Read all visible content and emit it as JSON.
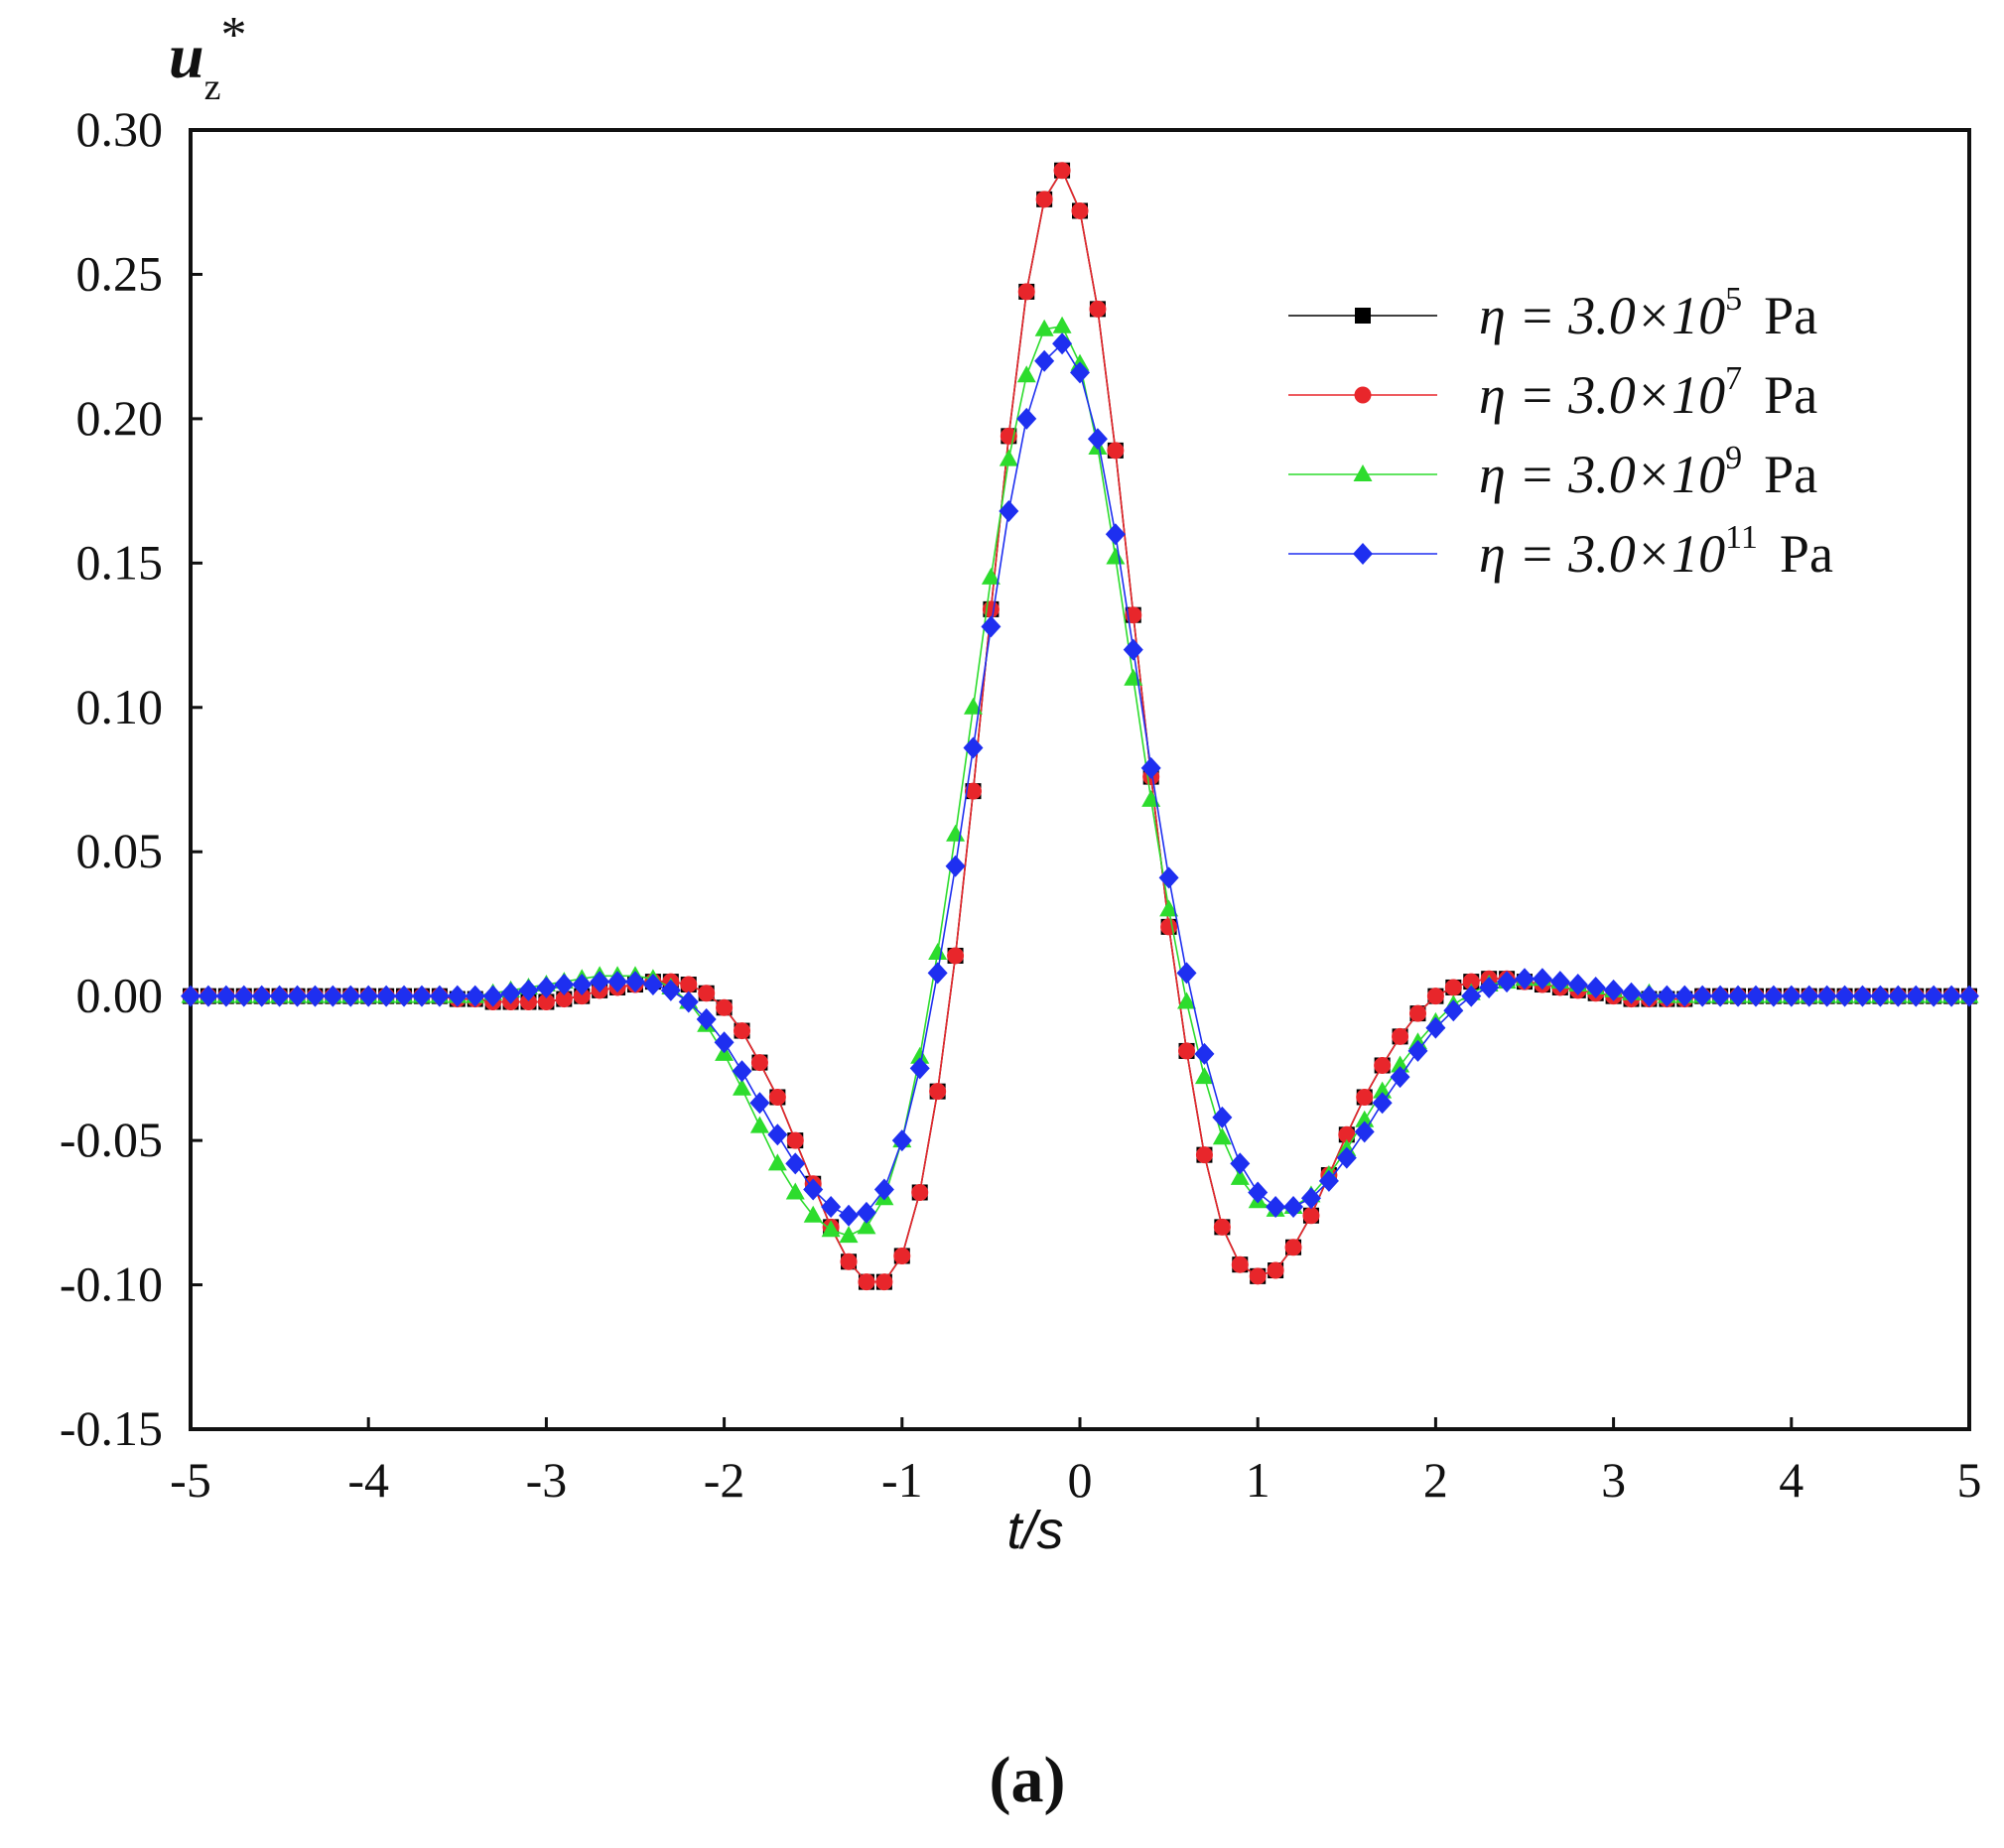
{
  "chart_data": {
    "type": "line",
    "title": "",
    "ylabel_main": "u",
    "ylabel_sub": "z",
    "ylabel_sup": "*",
    "xlabel": "t/s",
    "caption": "(a)",
    "xlim": [
      -5,
      5
    ],
    "ylim": [
      -0.15,
      0.3
    ],
    "x_ticks": [
      -5,
      -4,
      -3,
      -2,
      -1,
      0,
      1,
      2,
      3,
      4,
      5
    ],
    "x_tick_labels": [
      "-5",
      "-4",
      "-3",
      "-2",
      "-1",
      "0",
      "1",
      "2",
      "3",
      "4",
      "5"
    ],
    "y_ticks": [
      -0.15,
      -0.1,
      -0.05,
      0.0,
      0.05,
      0.1,
      0.15,
      0.2,
      0.25,
      0.3
    ],
    "y_tick_labels": [
      "-0.15",
      "-0.10",
      "-0.05",
      "0.00",
      "0.05",
      "0.10",
      "0.15",
      "0.20",
      "0.25",
      "0.30"
    ],
    "grid": false,
    "legend_position": "top-right",
    "legend_prefix": "η = 3.0×10",
    "legend_unit": "Pa",
    "series": [
      {
        "name": "η = 3.0×10^5 Pa",
        "exponent": "5",
        "color": "#000000",
        "marker": "square",
        "x": [
          -5.0,
          -4.9,
          -4.8,
          -4.7,
          -4.6,
          -4.5,
          -4.4,
          -4.3,
          -4.2,
          -4.1,
          -4.0,
          -3.9,
          -3.8,
          -3.7,
          -3.6,
          -3.5,
          -3.4,
          -3.3,
          -3.2,
          -3.1,
          -3.0,
          -2.9,
          -2.8,
          -2.7,
          -2.6,
          -2.5,
          -2.4,
          -2.3,
          -2.2,
          -2.1,
          -2.0,
          -1.9,
          -1.8,
          -1.7,
          -1.6,
          -1.5,
          -1.4,
          -1.3,
          -1.2,
          -1.1,
          -1.0,
          -0.9,
          -0.8,
          -0.7,
          -0.6,
          -0.5,
          -0.4,
          -0.3,
          -0.2,
          -0.1,
          0.0,
          0.1,
          0.2,
          0.3,
          0.4,
          0.5,
          0.6,
          0.7,
          0.8,
          0.9,
          1.0,
          1.1,
          1.2,
          1.3,
          1.4,
          1.5,
          1.6,
          1.7,
          1.8,
          1.9,
          2.0,
          2.1,
          2.2,
          2.3,
          2.4,
          2.5,
          2.6,
          2.7,
          2.8,
          2.9,
          3.0,
          3.1,
          3.2,
          3.3,
          3.4,
          3.5,
          3.6,
          3.7,
          3.8,
          3.9,
          4.0,
          4.1,
          4.2,
          4.3,
          4.4,
          4.5,
          4.6,
          4.7,
          4.8,
          4.9,
          5.0
        ],
        "y": [
          0.0,
          0.0,
          0.0,
          0.0,
          0.0,
          0.0,
          0.0,
          0.0,
          0.0,
          0.0,
          0.0,
          0.0,
          0.0,
          0.0,
          0.0,
          -0.001,
          -0.001,
          -0.002,
          -0.002,
          -0.002,
          -0.002,
          -0.001,
          0.0,
          0.002,
          0.003,
          0.004,
          0.005,
          0.005,
          0.004,
          0.001,
          -0.004,
          -0.012,
          -0.023,
          -0.035,
          -0.05,
          -0.065,
          -0.08,
          -0.092,
          -0.099,
          -0.099,
          -0.09,
          -0.068,
          -0.033,
          0.014,
          0.071,
          0.134,
          0.194,
          0.244,
          0.276,
          0.286,
          0.272,
          0.238,
          0.189,
          0.132,
          0.076,
          0.024,
          -0.019,
          -0.055,
          -0.08,
          -0.093,
          -0.097,
          -0.095,
          -0.087,
          -0.076,
          -0.062,
          -0.048,
          -0.035,
          -0.024,
          -0.014,
          -0.006,
          0.0,
          0.003,
          0.005,
          0.006,
          0.006,
          0.005,
          0.004,
          0.003,
          0.002,
          0.001,
          0.0,
          -0.001,
          -0.001,
          -0.001,
          -0.001,
          0.0,
          0.0,
          0.0,
          0.0,
          0.0,
          0.0,
          0.0,
          0.0,
          0.0,
          0.0,
          0.0,
          0.0,
          0.0,
          0.0,
          0.0,
          0.0
        ]
      },
      {
        "name": "η = 3.0×10^7 Pa",
        "exponent": "7",
        "color": "#e8262b",
        "marker": "circle",
        "x": [
          -5.0,
          -4.9,
          -4.8,
          -4.7,
          -4.6,
          -4.5,
          -4.4,
          -4.3,
          -4.2,
          -4.1,
          -4.0,
          -3.9,
          -3.8,
          -3.7,
          -3.6,
          -3.5,
          -3.4,
          -3.3,
          -3.2,
          -3.1,
          -3.0,
          -2.9,
          -2.8,
          -2.7,
          -2.6,
          -2.5,
          -2.4,
          -2.3,
          -2.2,
          -2.1,
          -2.0,
          -1.9,
          -1.8,
          -1.7,
          -1.6,
          -1.5,
          -1.4,
          -1.3,
          -1.2,
          -1.1,
          -1.0,
          -0.9,
          -0.8,
          -0.7,
          -0.6,
          -0.5,
          -0.4,
          -0.3,
          -0.2,
          -0.1,
          0.0,
          0.1,
          0.2,
          0.3,
          0.4,
          0.5,
          0.6,
          0.7,
          0.8,
          0.9,
          1.0,
          1.1,
          1.2,
          1.3,
          1.4,
          1.5,
          1.6,
          1.7,
          1.8,
          1.9,
          2.0,
          2.1,
          2.2,
          2.3,
          2.4,
          2.5,
          2.6,
          2.7,
          2.8,
          2.9,
          3.0,
          3.1,
          3.2,
          3.3,
          3.4,
          3.5,
          3.6,
          3.7,
          3.8,
          3.9,
          4.0,
          4.1,
          4.2,
          4.3,
          4.4,
          4.5,
          4.6,
          4.7,
          4.8,
          4.9,
          5.0
        ],
        "y": [
          0.0,
          0.0,
          0.0,
          0.0,
          0.0,
          0.0,
          0.0,
          0.0,
          0.0,
          0.0,
          0.0,
          0.0,
          0.0,
          0.0,
          0.0,
          -0.001,
          -0.001,
          -0.002,
          -0.002,
          -0.002,
          -0.002,
          -0.001,
          0.0,
          0.002,
          0.003,
          0.004,
          0.005,
          0.005,
          0.004,
          0.001,
          -0.004,
          -0.012,
          -0.023,
          -0.035,
          -0.05,
          -0.065,
          -0.08,
          -0.092,
          -0.099,
          -0.099,
          -0.09,
          -0.068,
          -0.033,
          0.014,
          0.071,
          0.134,
          0.194,
          0.244,
          0.276,
          0.286,
          0.272,
          0.238,
          0.189,
          0.132,
          0.076,
          0.024,
          -0.019,
          -0.055,
          -0.08,
          -0.093,
          -0.097,
          -0.095,
          -0.087,
          -0.076,
          -0.062,
          -0.048,
          -0.035,
          -0.024,
          -0.014,
          -0.006,
          0.0,
          0.003,
          0.005,
          0.006,
          0.006,
          0.005,
          0.004,
          0.003,
          0.002,
          0.001,
          0.0,
          -0.001,
          -0.001,
          -0.001,
          -0.001,
          0.0,
          0.0,
          0.0,
          0.0,
          0.0,
          0.0,
          0.0,
          0.0,
          0.0,
          0.0,
          0.0,
          0.0,
          0.0,
          0.0,
          0.0,
          0.0
        ]
      },
      {
        "name": "η = 3.0×10^9 Pa",
        "exponent": "9",
        "color": "#2ddc2d",
        "marker": "triangle",
        "x": [
          -5.0,
          -4.9,
          -4.8,
          -4.7,
          -4.6,
          -4.5,
          -4.4,
          -4.3,
          -4.2,
          -4.1,
          -4.0,
          -3.9,
          -3.8,
          -3.7,
          -3.6,
          -3.5,
          -3.4,
          -3.3,
          -3.2,
          -3.1,
          -3.0,
          -2.9,
          -2.8,
          -2.7,
          -2.6,
          -2.5,
          -2.4,
          -2.3,
          -2.2,
          -2.1,
          -2.0,
          -1.9,
          -1.8,
          -1.7,
          -1.6,
          -1.5,
          -1.4,
          -1.3,
          -1.2,
          -1.1,
          -1.0,
          -0.9,
          -0.8,
          -0.7,
          -0.6,
          -0.5,
          -0.4,
          -0.3,
          -0.2,
          -0.1,
          0.0,
          0.1,
          0.2,
          0.3,
          0.4,
          0.5,
          0.6,
          0.7,
          0.8,
          0.9,
          1.0,
          1.1,
          1.2,
          1.3,
          1.4,
          1.5,
          1.6,
          1.7,
          1.8,
          1.9,
          2.0,
          2.1,
          2.2,
          2.3,
          2.4,
          2.5,
          2.6,
          2.7,
          2.8,
          2.9,
          3.0,
          3.1,
          3.2,
          3.3,
          3.4,
          3.5,
          3.6,
          3.7,
          3.8,
          3.9,
          4.0,
          4.1,
          4.2,
          4.3,
          4.4,
          4.5,
          4.6,
          4.7,
          4.8,
          4.9,
          5.0
        ],
        "y": [
          0.0,
          0.0,
          0.0,
          0.0,
          0.0,
          0.0,
          0.0,
          0.0,
          0.0,
          0.0,
          0.0,
          0.0,
          0.0,
          0.0,
          0.0,
          0.0,
          0.0,
          0.001,
          0.002,
          0.003,
          0.004,
          0.005,
          0.006,
          0.007,
          0.007,
          0.007,
          0.006,
          0.003,
          -0.002,
          -0.01,
          -0.02,
          -0.032,
          -0.045,
          -0.058,
          -0.068,
          -0.076,
          -0.081,
          -0.083,
          -0.08,
          -0.07,
          -0.05,
          -0.021,
          0.015,
          0.056,
          0.1,
          0.145,
          0.186,
          0.215,
          0.231,
          0.232,
          0.219,
          0.19,
          0.152,
          0.11,
          0.068,
          0.03,
          -0.002,
          -0.028,
          -0.049,
          -0.063,
          -0.071,
          -0.074,
          -0.073,
          -0.069,
          -0.062,
          -0.053,
          -0.043,
          -0.033,
          -0.024,
          -0.016,
          -0.009,
          -0.003,
          0.001,
          0.004,
          0.005,
          0.006,
          0.006,
          0.005,
          0.004,
          0.003,
          0.002,
          0.001,
          0.001,
          0.0,
          0.0,
          0.0,
          0.0,
          0.0,
          0.0,
          0.0,
          0.0,
          0.0,
          0.0,
          0.0,
          0.0,
          0.0,
          0.0,
          0.0,
          0.0,
          0.0,
          0.0
        ]
      },
      {
        "name": "η = 3.0×10^11 Pa",
        "exponent": "11",
        "color": "#1e2ff0",
        "marker": "diamond",
        "x": [
          -5.0,
          -4.9,
          -4.8,
          -4.7,
          -4.6,
          -4.5,
          -4.4,
          -4.3,
          -4.2,
          -4.1,
          -4.0,
          -3.9,
          -3.8,
          -3.7,
          -3.6,
          -3.5,
          -3.4,
          -3.3,
          -3.2,
          -3.1,
          -3.0,
          -2.9,
          -2.8,
          -2.7,
          -2.6,
          -2.5,
          -2.4,
          -2.3,
          -2.2,
          -2.1,
          -2.0,
          -1.9,
          -1.8,
          -1.7,
          -1.6,
          -1.5,
          -1.4,
          -1.3,
          -1.2,
          -1.1,
          -1.0,
          -0.9,
          -0.8,
          -0.7,
          -0.6,
          -0.5,
          -0.4,
          -0.3,
          -0.2,
          -0.1,
          0.0,
          0.1,
          0.2,
          0.3,
          0.4,
          0.5,
          0.6,
          0.7,
          0.8,
          0.9,
          1.0,
          1.1,
          1.2,
          1.3,
          1.4,
          1.5,
          1.6,
          1.7,
          1.8,
          1.9,
          2.0,
          2.1,
          2.2,
          2.3,
          2.4,
          2.5,
          2.6,
          2.7,
          2.8,
          2.9,
          3.0,
          3.1,
          3.2,
          3.3,
          3.4,
          3.5,
          3.6,
          3.7,
          3.8,
          3.9,
          4.0,
          4.1,
          4.2,
          4.3,
          4.4,
          4.5,
          4.6,
          4.7,
          4.8,
          4.9,
          5.0
        ],
        "y": [
          0.0,
          0.0,
          0.0,
          0.0,
          0.0,
          0.0,
          0.0,
          0.0,
          0.0,
          0.0,
          0.0,
          0.0,
          0.0,
          0.0,
          0.0,
          0.0,
          0.0,
          0.0,
          0.001,
          0.002,
          0.003,
          0.004,
          0.004,
          0.005,
          0.005,
          0.005,
          0.004,
          0.002,
          -0.002,
          -0.008,
          -0.016,
          -0.026,
          -0.037,
          -0.048,
          -0.058,
          -0.067,
          -0.073,
          -0.076,
          -0.075,
          -0.067,
          -0.05,
          -0.025,
          0.008,
          0.045,
          0.086,
          0.128,
          0.168,
          0.2,
          0.22,
          0.226,
          0.216,
          0.193,
          0.16,
          0.12,
          0.079,
          0.041,
          0.008,
          -0.02,
          -0.042,
          -0.058,
          -0.068,
          -0.073,
          -0.073,
          -0.07,
          -0.064,
          -0.056,
          -0.047,
          -0.037,
          -0.028,
          -0.019,
          -0.011,
          -0.005,
          0.0,
          0.003,
          0.005,
          0.006,
          0.006,
          0.005,
          0.004,
          0.003,
          0.002,
          0.001,
          0.0,
          0.0,
          0.0,
          0.0,
          0.0,
          0.0,
          0.0,
          0.0,
          0.0,
          0.0,
          0.0,
          0.0,
          0.0,
          0.0,
          0.0,
          0.0,
          0.0,
          0.0,
          0.0
        ]
      }
    ]
  }
}
